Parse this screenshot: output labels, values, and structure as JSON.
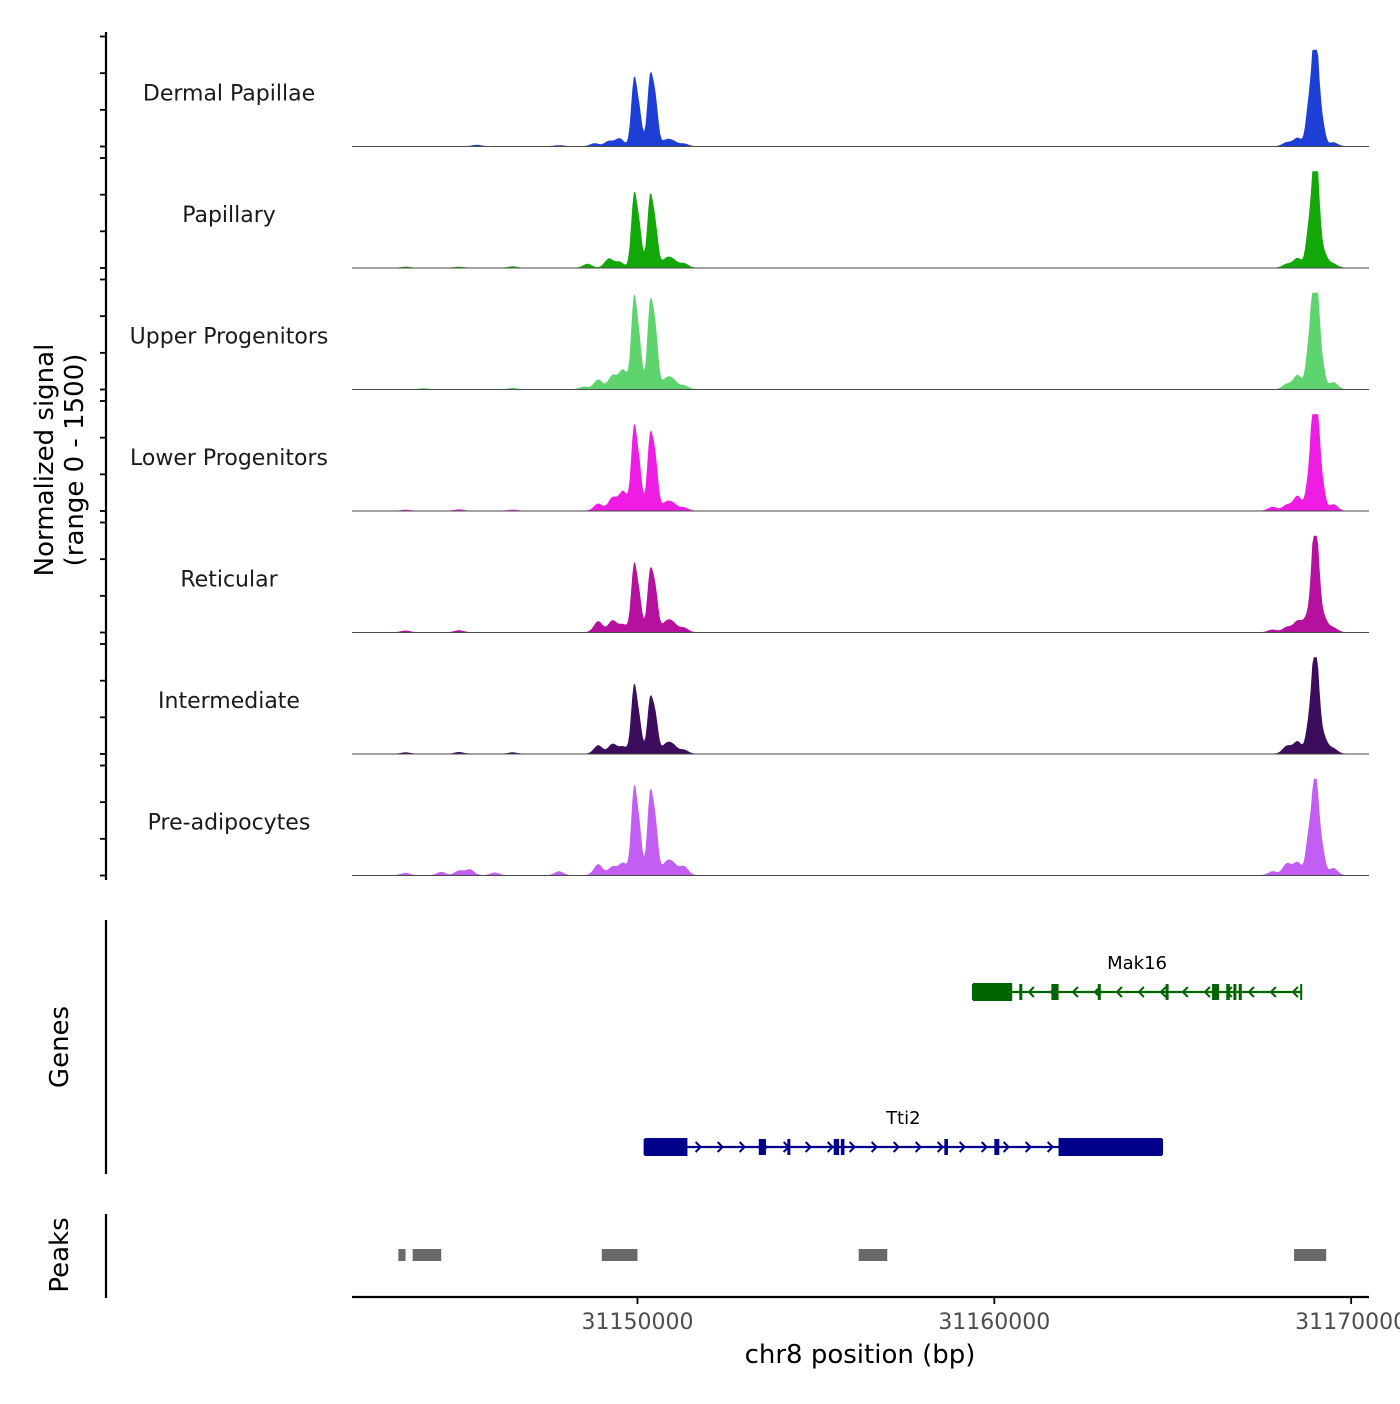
{
  "chart_data": {
    "type": "area",
    "title": "",
    "chromosome": "chr8",
    "xlabel": "chr8 position (bp)",
    "xlim": [
      31142000,
      31170500
    ],
    "x_ticks": [
      31150000,
      31160000,
      31170000
    ],
    "x_tick_labels": [
      "31150000",
      "31160000",
      "31170000"
    ],
    "coverage": {
      "ylabel_line1": "Normalized signal",
      "ylabel_line2": "(range 0 - 1500)",
      "ylim": [
        0,
        1500
      ],
      "series": [
        {
          "name": "Dermal Papillae",
          "color": "#1d3fd6",
          "peaks": [
            [
              31145500,
              20
            ],
            [
              31147800,
              15
            ],
            [
              31148800,
              45
            ],
            [
              31149200,
              80
            ],
            [
              31149500,
              120
            ],
            [
              31149900,
              1000
            ],
            [
              31150050,
              520
            ],
            [
              31150350,
              1020
            ],
            [
              31150500,
              700
            ],
            [
              31150800,
              90
            ],
            [
              31151000,
              70
            ],
            [
              31151300,
              40
            ],
            [
              31168200,
              60
            ],
            [
              31168500,
              130
            ],
            [
              31168800,
              560
            ],
            [
              31168950,
              1200
            ],
            [
              31169050,
              1040
            ],
            [
              31169200,
              320
            ],
            [
              31169500,
              60
            ]
          ]
        },
        {
          "name": "Papillary",
          "color": "#13a80a",
          "peaks": [
            [
              31143500,
              15
            ],
            [
              31145000,
              15
            ],
            [
              31146500,
              20
            ],
            [
              31148600,
              60
            ],
            [
              31149200,
              140
            ],
            [
              31149500,
              90
            ],
            [
              31149900,
              1080
            ],
            [
              31150050,
              600
            ],
            [
              31150350,
              1050
            ],
            [
              31150500,
              620
            ],
            [
              31150800,
              130
            ],
            [
              31151000,
              110
            ],
            [
              31151300,
              70
            ],
            [
              31168200,
              60
            ],
            [
              31168500,
              150
            ],
            [
              31168800,
              520
            ],
            [
              31168950,
              1230
            ],
            [
              31169050,
              1050
            ],
            [
              31169200,
              260
            ],
            [
              31169500,
              60
            ]
          ]
        },
        {
          "name": "Upper Progenitors",
          "color": "#5ed46e",
          "peaks": [
            [
              31144000,
              15
            ],
            [
              31146500,
              20
            ],
            [
              31148500,
              40
            ],
            [
              31148900,
              150
            ],
            [
              31149300,
              210
            ],
            [
              31149600,
              300
            ],
            [
              31149900,
              1350
            ],
            [
              31150050,
              700
            ],
            [
              31150350,
              1250
            ],
            [
              31150500,
              880
            ],
            [
              31150800,
              150
            ],
            [
              31151000,
              130
            ],
            [
              31151300,
              60
            ],
            [
              31168200,
              80
            ],
            [
              31168500,
              220
            ],
            [
              31168800,
              560
            ],
            [
              31168950,
              1450
            ],
            [
              31169050,
              1200
            ],
            [
              31169200,
              330
            ],
            [
              31169500,
              110
            ]
          ]
        },
        {
          "name": "Lower Progenitors",
          "color": "#ef1de3",
          "peaks": [
            [
              31143500,
              15
            ],
            [
              31145000,
              20
            ],
            [
              31146500,
              15
            ],
            [
              31148900,
              110
            ],
            [
              31149300,
              200
            ],
            [
              31149600,
              300
            ],
            [
              31149900,
              1230
            ],
            [
              31150050,
              650
            ],
            [
              31150350,
              1100
            ],
            [
              31150500,
              760
            ],
            [
              31150800,
              120
            ],
            [
              31151000,
              100
            ],
            [
              31151300,
              50
            ],
            [
              31167800,
              60
            ],
            [
              31168200,
              90
            ],
            [
              31168500,
              230
            ],
            [
              31168800,
              420
            ],
            [
              31168950,
              1560
            ],
            [
              31169050,
              1220
            ],
            [
              31169200,
              370
            ],
            [
              31169500,
              100
            ]
          ]
        },
        {
          "name": "Reticular",
          "color": "#b5119e",
          "peaks": [
            [
              31143500,
              25
            ],
            [
              31145000,
              30
            ],
            [
              31148900,
              170
            ],
            [
              31149300,
              180
            ],
            [
              31149600,
              120
            ],
            [
              31149900,
              1000
            ],
            [
              31150050,
              520
            ],
            [
              31150350,
              890
            ],
            [
              31150500,
              630
            ],
            [
              31150800,
              150
            ],
            [
              31151000,
              130
            ],
            [
              31151300,
              70
            ],
            [
              31167800,
              40
            ],
            [
              31168200,
              80
            ],
            [
              31168500,
              170
            ],
            [
              31168800,
              260
            ],
            [
              31168950,
              1120
            ],
            [
              31169050,
              920
            ],
            [
              31169200,
              260
            ],
            [
              31169500,
              70
            ]
          ]
        },
        {
          "name": "Intermediate",
          "color": "#3b0d5c",
          "peaks": [
            [
              31143500,
              20
            ],
            [
              31145000,
              25
            ],
            [
              31146500,
              20
            ],
            [
              31148900,
              130
            ],
            [
              31149300,
              150
            ],
            [
              31149600,
              110
            ],
            [
              31149900,
              1010
            ],
            [
              31150050,
              480
            ],
            [
              31150350,
              800
            ],
            [
              31150500,
              560
            ],
            [
              31150800,
              140
            ],
            [
              31151000,
              120
            ],
            [
              31151300,
              60
            ],
            [
              31168200,
              120
            ],
            [
              31168500,
              190
            ],
            [
              31168800,
              400
            ],
            [
              31168950,
              1170
            ],
            [
              31169050,
              880
            ],
            [
              31169200,
              290
            ],
            [
              31169500,
              80
            ]
          ]
        },
        {
          "name": "Pre-adipocytes",
          "color": "#c35ef2",
          "peaks": [
            [
              31143500,
              35
            ],
            [
              31144500,
              50
            ],
            [
              31145000,
              70
            ],
            [
              31145300,
              90
            ],
            [
              31146000,
              40
            ],
            [
              31147800,
              60
            ],
            [
              31148900,
              170
            ],
            [
              31149300,
              130
            ],
            [
              31149600,
              190
            ],
            [
              31149900,
              1280
            ],
            [
              31150050,
              700
            ],
            [
              31150350,
              1200
            ],
            [
              31150500,
              780
            ],
            [
              31150800,
              180
            ],
            [
              31151000,
              160
            ],
            [
              31151300,
              140
            ],
            [
              31167800,
              60
            ],
            [
              31168200,
              180
            ],
            [
              31168500,
              200
            ],
            [
              31168800,
              540
            ],
            [
              31168950,
              1040
            ],
            [
              31169050,
              920
            ],
            [
              31169200,
              350
            ],
            [
              31169500,
              110
            ]
          ]
        }
      ]
    },
    "genes": {
      "ylabel": "Genes",
      "items": [
        {
          "name": "Mak16",
          "strand": "-",
          "color": "#006400",
          "start": 31159400,
          "end": 31168600,
          "exons": [
            [
              31159400,
              31160500
            ],
            [
              31160700,
              31160760
            ],
            [
              31161600,
              31161800
            ],
            [
              31162900,
              31162960
            ],
            [
              31164800,
              31164860
            ],
            [
              31166100,
              31166300
            ],
            [
              31166500,
              31166600
            ],
            [
              31166700,
              31166760
            ],
            [
              31166850,
              31166910
            ]
          ]
        },
        {
          "name": "Tti2",
          "strand": "+",
          "color": "#00008b",
          "start": 31150200,
          "end": 31164700,
          "exons": [
            [
              31150200,
              31151400
            ],
            [
              31153400,
              31153600
            ],
            [
              31154200,
              31154260
            ],
            [
              31155500,
              31155650
            ],
            [
              31155700,
              31155800
            ],
            [
              31158600,
              31158700
            ],
            [
              31160000,
              31160140
            ],
            [
              31161800,
              31164700
            ]
          ]
        }
      ]
    },
    "peaks": {
      "ylabel": "Peaks",
      "color": "#696969",
      "regions": [
        [
          31143300,
          31143500
        ],
        [
          31143700,
          31144500
        ],
        [
          31149000,
          31150000
        ],
        [
          31156200,
          31157000
        ],
        [
          31168400,
          31169300
        ]
      ]
    }
  }
}
